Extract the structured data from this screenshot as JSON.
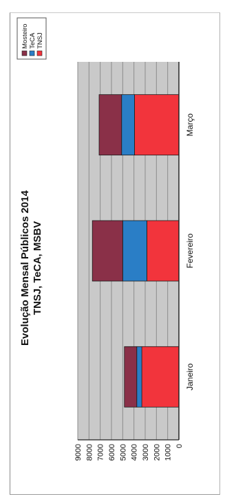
{
  "chart_data": {
    "type": "bar",
    "stacked": true,
    "title": "Evolução Mensal Públicos 2014",
    "subtitle": "TNSJ, TeCA, MSBV",
    "categories": [
      "Janeiro",
      "Fevereiro",
      "Março"
    ],
    "series": [
      {
        "name": "TNSJ",
        "values": [
          3300,
          2850,
          3950
        ],
        "color": "#f2343c"
      },
      {
        "name": "TeCA",
        "values": [
          450,
          2150,
          1150
        ],
        "color": "#2a7ec6"
      },
      {
        "name": "Mosteiro",
        "values": [
          1100,
          2700,
          2000
        ],
        "color": "#8a3048"
      }
    ],
    "ylim": [
      0,
      9000
    ],
    "yticks": [
      0,
      1000,
      2000,
      3000,
      4000,
      5000,
      6000,
      7000,
      8000,
      9000
    ],
    "grid": true,
    "legend_position": "top-right",
    "legend_order": [
      "Mosteiro",
      "TeCA",
      "TNSJ"
    ],
    "plot_background": "#c9c9c9"
  }
}
